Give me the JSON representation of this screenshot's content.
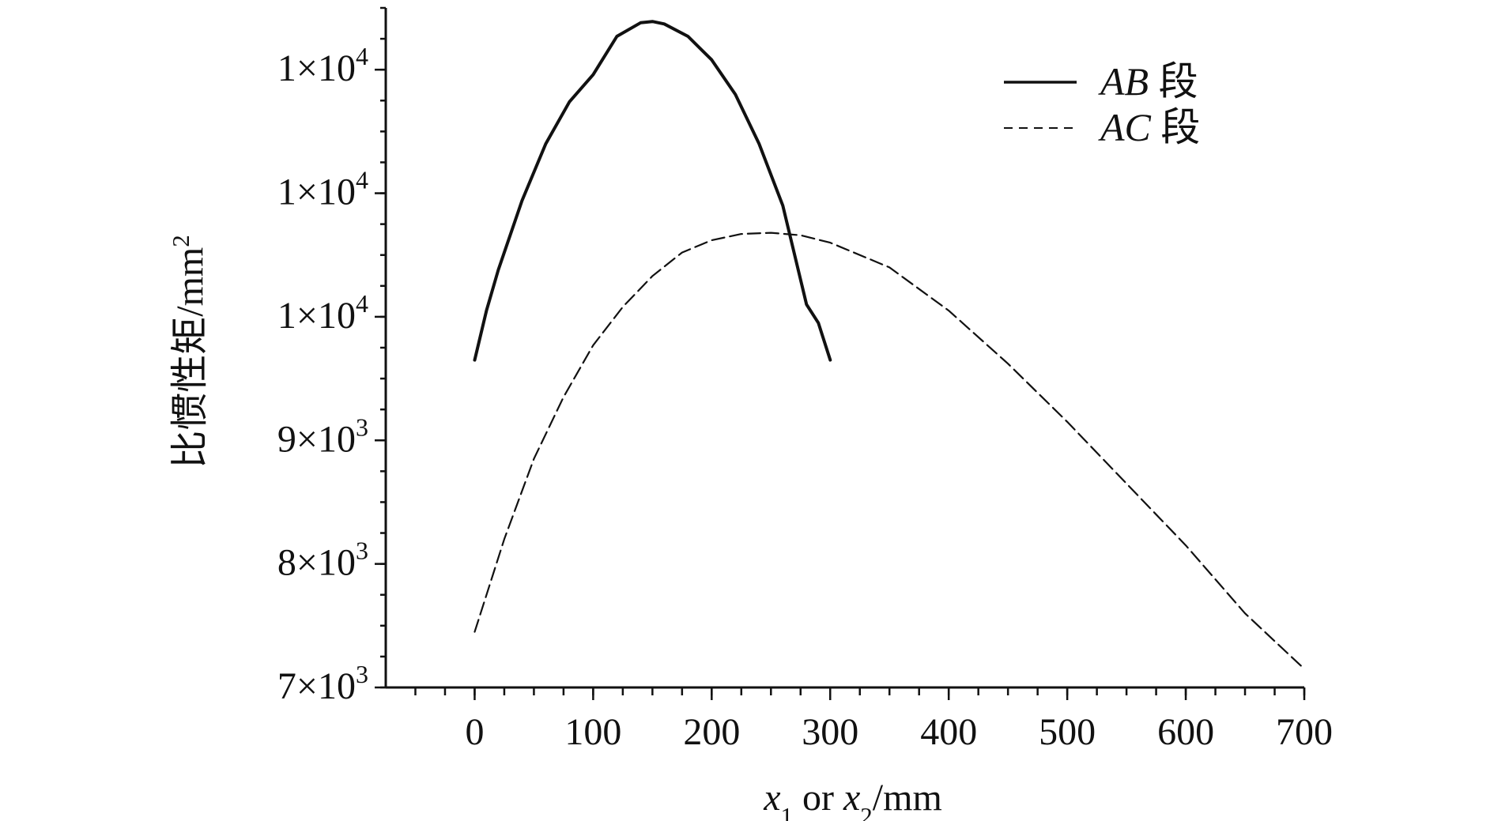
{
  "chart_data": {
    "type": "line",
    "xlabel": {
      "parts": [
        {
          "text": "x",
          "style": "italic"
        },
        {
          "text": "1",
          "style": "sub"
        },
        {
          "text": " or ",
          "style": "normal"
        },
        {
          "text": "x",
          "style": "italic"
        },
        {
          "text": "2",
          "style": "sub"
        },
        {
          "text": "/mm",
          "style": "normal"
        }
      ]
    },
    "ylabel": {
      "parts": [
        {
          "text": "比惯性矩/mm",
          "style": "normal"
        },
        {
          "text": "2",
          "style": "sup"
        }
      ]
    },
    "xlim": [
      -75,
      700
    ],
    "ylim": [
      7000,
      12500
    ],
    "x_ticks": [
      0,
      100,
      200,
      300,
      400,
      500,
      600,
      700
    ],
    "x_minor_step": 25,
    "y_tick_values": [
      7000,
      8000,
      9000,
      10000,
      11000,
      12000
    ],
    "y_tick_labels": [
      {
        "mant": "7×10",
        "exp": "3"
      },
      {
        "mant": "8×10",
        "exp": "3"
      },
      {
        "mant": "9×10",
        "exp": "3"
      },
      {
        "mant": "1×10",
        "exp": "4"
      },
      {
        "mant": "1×10",
        "exp": "4"
      },
      {
        "mant": "1×10",
        "exp": "4"
      }
    ],
    "y_minor_step": 250,
    "grid": false,
    "legend_position": "top-right",
    "series": [
      {
        "name": "AB 段",
        "label_parts": [
          {
            "text": "AB",
            "style": "italic"
          },
          {
            "text": " 段",
            "style": "normal"
          }
        ],
        "line_style": "solid",
        "x": [
          0,
          10,
          20,
          40,
          60,
          80,
          100,
          120,
          140,
          150,
          160,
          180,
          200,
          220,
          240,
          260,
          280,
          290,
          300
        ],
        "y": [
          9650,
          10050,
          10380,
          10940,
          11400,
          11740,
          11960,
          12270,
          12380,
          12390,
          12370,
          12270,
          12080,
          11800,
          11400,
          10900,
          10100,
          9950,
          9650
        ]
      },
      {
        "name": "AC 段",
        "label_parts": [
          {
            "text": "AC",
            "style": "italic"
          },
          {
            "text": " 段",
            "style": "normal"
          }
        ],
        "line_style": "dashed",
        "x": [
          0,
          25,
          50,
          75,
          100,
          125,
          150,
          175,
          200,
          225,
          250,
          275,
          300,
          350,
          400,
          450,
          500,
          550,
          600,
          650,
          700
        ],
        "y": [
          7450,
          8200,
          8850,
          9350,
          9770,
          10080,
          10330,
          10520,
          10620,
          10670,
          10680,
          10660,
          10600,
          10400,
          10050,
          9620,
          9150,
          8650,
          8150,
          7600,
          7150
        ]
      }
    ]
  }
}
